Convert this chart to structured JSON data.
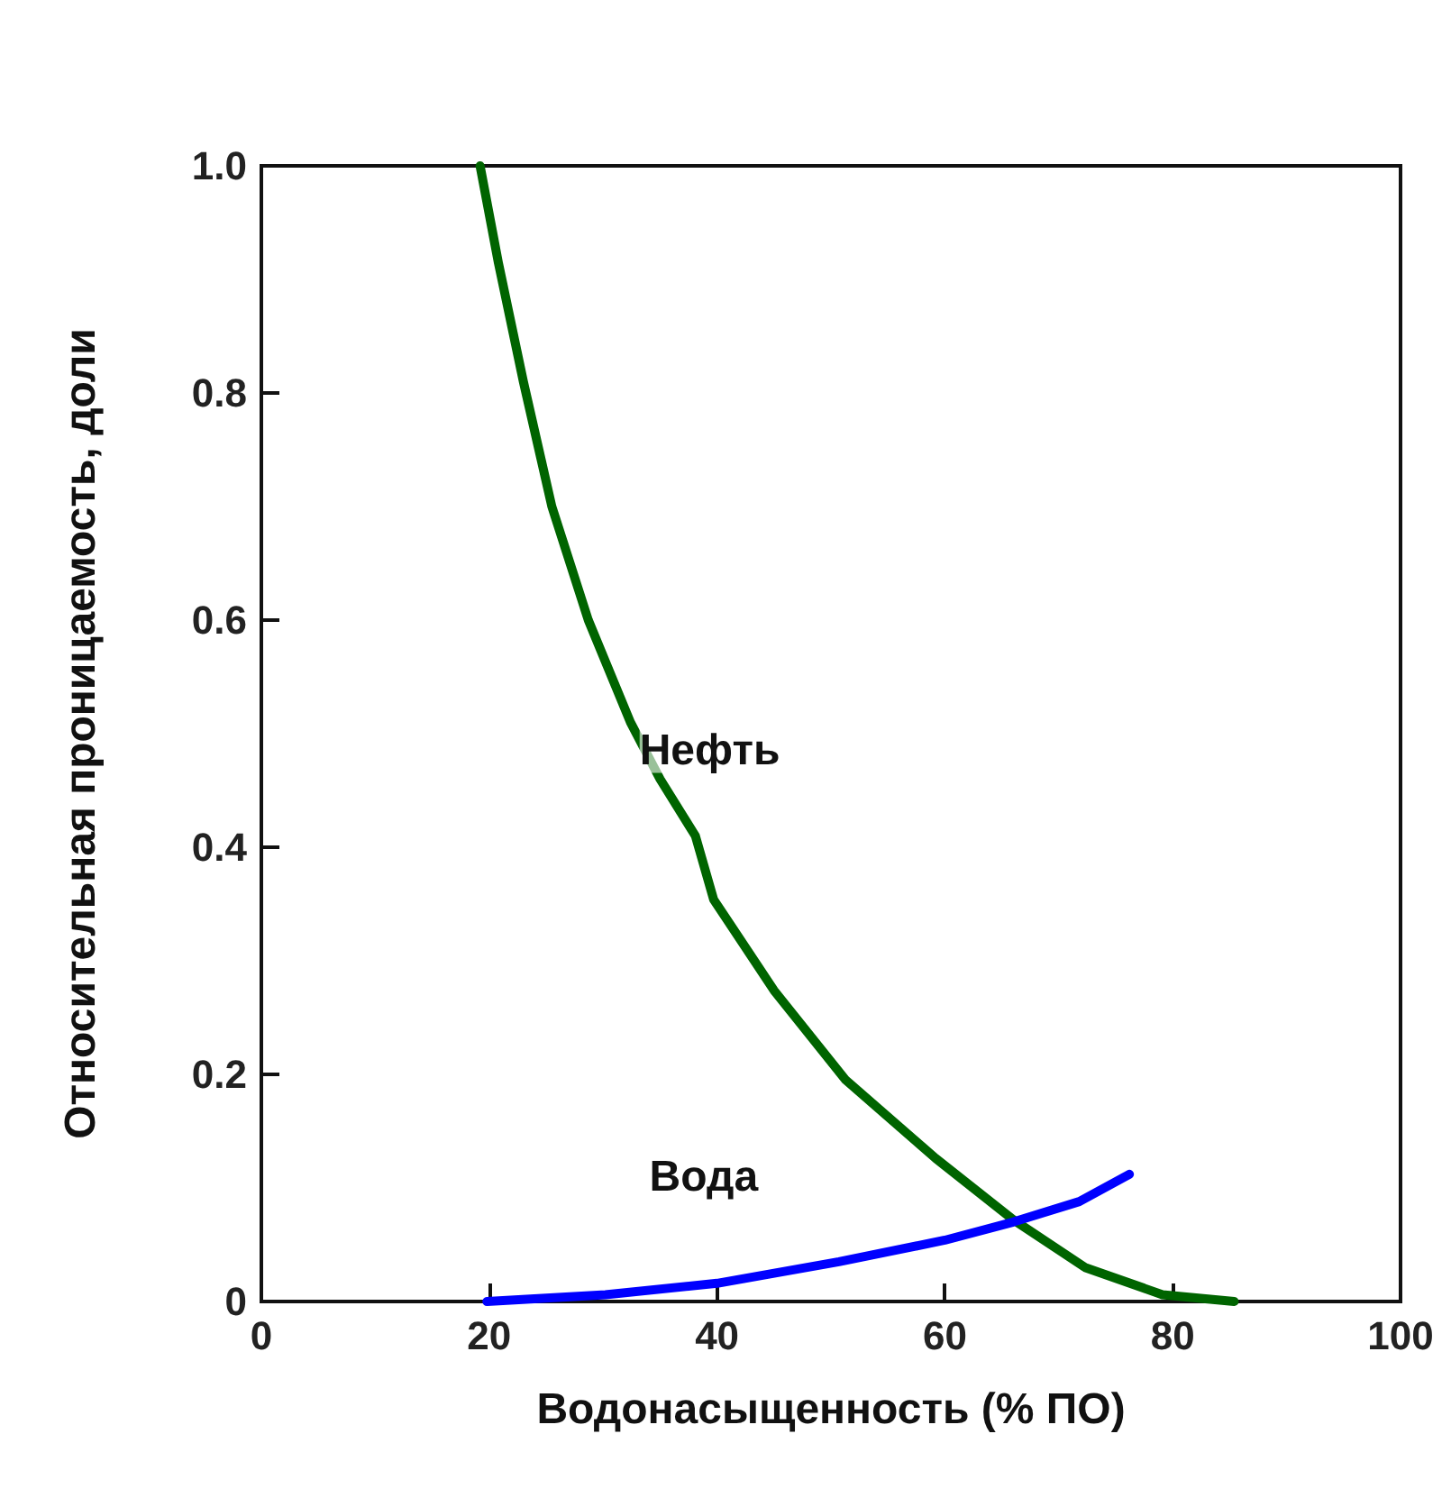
{
  "chart_data": {
    "type": "line",
    "xlabel": "Водонасыщенность (% ПО)",
    "ylabel": "Относительная проницаемость, доли",
    "xlim": [
      0,
      100
    ],
    "xticks": [
      0,
      20,
      40,
      60,
      80,
      100
    ],
    "ylim": [
      0,
      1.0
    ],
    "yticks": [
      0,
      0.2,
      0.4,
      0.6,
      0.8,
      "1.0"
    ],
    "grid": false,
    "legend": false,
    "marker": "none",
    "line_style": "solid",
    "series": [
      {
        "name": "Нефть",
        "color": "#006400",
        "x": [
          19.2,
          20.8,
          23.0,
          25.5,
          28.7,
          32.4,
          35.0,
          38.1,
          39.7,
          45.0,
          51.3,
          59.2,
          66.0,
          72.3,
          79.1,
          85.4
        ],
        "values": [
          1.0,
          0.915,
          0.81,
          0.7,
          0.6,
          0.51,
          0.46,
          0.41,
          0.354,
          0.274,
          0.195,
          0.126,
          0.072,
          0.03,
          0.006,
          0.0
        ]
      },
      {
        "name": "Вода",
        "color": "#0000ff",
        "x": [
          19.8,
          30.2,
          40.0,
          50.7,
          60.0,
          66.0,
          71.8,
          76.2
        ],
        "values": [
          0.0,
          0.006,
          0.016,
          0.035,
          0.054,
          0.07,
          0.088,
          0.112
        ]
      }
    ]
  }
}
